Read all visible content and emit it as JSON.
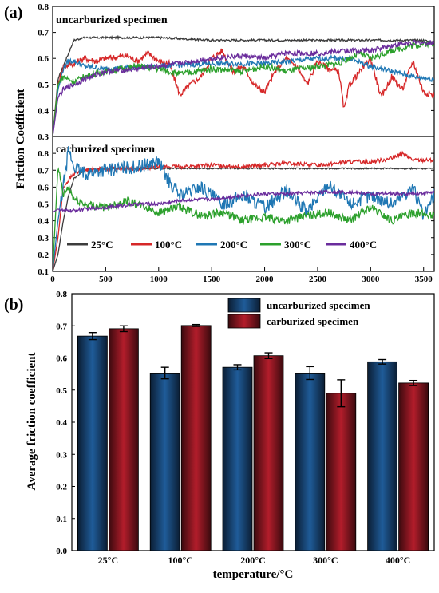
{
  "panel_labels": [
    "(a)",
    "(b)"
  ],
  "chart_data": [
    {
      "type": "line",
      "ylabel": "Friction Coefficient",
      "xlim": [
        0,
        3600
      ],
      "x_ticks": [
        "0",
        "500",
        "1000",
        "1500",
        "2000",
        "2500",
        "3000",
        "3500"
      ],
      "legend_placement": "bottom",
      "legend": [
        {
          "name": "25°C",
          "color": "#3c3c3c"
        },
        {
          "name": "100°C",
          "color": "#d62728"
        },
        {
          "name": "200°C",
          "color": "#1f77b4"
        },
        {
          "name": "300°C",
          "color": "#2ca02c"
        },
        {
          "name": "400°C",
          "color": "#6a2c9c"
        }
      ],
      "panels": [
        {
          "title": "uncarburized specimen",
          "ylim": [
            0.3,
            0.8
          ],
          "y_ticks": [
            "0.3",
            "0.4",
            "0.5",
            "0.6",
            "0.7",
            "0.8"
          ],
          "series": [
            {
              "name": "25°C",
              "color": "#3c3c3c",
              "x": [
                0,
                50,
                100,
                150,
                200,
                300,
                500,
                1000,
                1500,
                2000,
                2500,
                3000,
                3500,
                3600
              ],
              "y": [
                0.3,
                0.52,
                0.57,
                0.62,
                0.67,
                0.68,
                0.68,
                0.68,
                0.67,
                0.67,
                0.67,
                0.67,
                0.67,
                0.66
              ]
            },
            {
              "name": "100°C",
              "color": "#d62728",
              "x": [
                0,
                50,
                100,
                200,
                300,
                400,
                500,
                700,
                800,
                900,
                1000,
                1100,
                1200,
                1300,
                1400,
                1500,
                1600,
                1700,
                1800,
                1900,
                2000,
                2100,
                2200,
                2300,
                2400,
                2500,
                2600,
                2700,
                2750,
                2800,
                2900,
                3000,
                3100,
                3200,
                3300,
                3400,
                3500,
                3600
              ],
              "y": [
                0.3,
                0.5,
                0.57,
                0.58,
                0.6,
                0.59,
                0.6,
                0.61,
                0.59,
                0.62,
                0.59,
                0.58,
                0.46,
                0.5,
                0.53,
                0.6,
                0.63,
                0.55,
                0.57,
                0.5,
                0.47,
                0.55,
                0.6,
                0.57,
                0.5,
                0.59,
                0.56,
                0.55,
                0.4,
                0.5,
                0.55,
                0.6,
                0.45,
                0.53,
                0.48,
                0.59,
                0.47,
                0.46
              ]
            },
            {
              "name": "200°C",
              "color": "#1f77b4",
              "x": [
                0,
                50,
                100,
                150,
                200,
                300,
                500,
                1000,
                1500,
                2000,
                2500,
                2800,
                3000,
                3200,
                3400,
                3600
              ],
              "y": [
                0.3,
                0.48,
                0.56,
                0.59,
                0.59,
                0.57,
                0.56,
                0.57,
                0.58,
                0.58,
                0.6,
                0.6,
                0.57,
                0.55,
                0.53,
                0.52
              ]
            },
            {
              "name": "300°C",
              "color": "#2ca02c",
              "x": [
                0,
                50,
                100,
                200,
                300,
                500,
                800,
                1000,
                1200,
                1500,
                1800,
                2000,
                2200,
                2500,
                2700,
                2900,
                3000,
                3200,
                3400,
                3600
              ],
              "y": [
                0.3,
                0.5,
                0.53,
                0.51,
                0.53,
                0.55,
                0.57,
                0.56,
                0.54,
                0.56,
                0.55,
                0.57,
                0.55,
                0.57,
                0.58,
                0.62,
                0.6,
                0.63,
                0.65,
                0.66
              ]
            },
            {
              "name": "400°C",
              "color": "#6a2c9c",
              "x": [
                0,
                50,
                100,
                200,
                300,
                500,
                800,
                1000,
                1200,
                1500,
                1800,
                2000,
                2200,
                2500,
                2800,
                3000,
                3200,
                3400,
                3600
              ],
              "y": [
                0.3,
                0.45,
                0.48,
                0.5,
                0.52,
                0.55,
                0.56,
                0.57,
                0.58,
                0.6,
                0.61,
                0.6,
                0.62,
                0.62,
                0.63,
                0.63,
                0.65,
                0.66,
                0.66
              ]
            }
          ]
        },
        {
          "title": "carburized specimen",
          "ylim": [
            0.1,
            0.9
          ],
          "y_ticks": [
            "0.1",
            "0.2",
            "0.3",
            "0.4",
            "0.5",
            "0.6",
            "0.7",
            "0.8",
            "0.9"
          ],
          "series": [
            {
              "name": "25°C",
              "color": "#3c3c3c",
              "x": [
                0,
                50,
                100,
                150,
                200,
                300,
                500,
                1000,
                1500,
                2000,
                2500,
                3000,
                3500,
                3600
              ],
              "y": [
                0.1,
                0.2,
                0.4,
                0.55,
                0.65,
                0.7,
                0.71,
                0.71,
                0.71,
                0.71,
                0.71,
                0.71,
                0.71,
                0.71
              ]
            },
            {
              "name": "100°C",
              "color": "#d62728",
              "x": [
                0,
                50,
                100,
                200,
                300,
                500,
                800,
                1000,
                1200,
                1500,
                1800,
                2000,
                2200,
                2500,
                2800,
                3000,
                3200,
                3300,
                3400,
                3600
              ],
              "y": [
                0.1,
                0.3,
                0.6,
                0.68,
                0.7,
                0.71,
                0.71,
                0.72,
                0.72,
                0.73,
                0.72,
                0.73,
                0.74,
                0.73,
                0.75,
                0.75,
                0.77,
                0.8,
                0.76,
                0.76
              ]
            },
            {
              "name": "200°C",
              "color": "#1f77b4",
              "x": [
                0,
                50,
                100,
                150,
                200,
                300,
                500,
                800,
                1000,
                1100,
                1200,
                1400,
                1600,
                1800,
                2000,
                2200,
                2400,
                2600,
                2800,
                3000,
                3200,
                3400,
                3500,
                3600
              ],
              "y": [
                0.1,
                0.4,
                0.6,
                0.82,
                0.72,
                0.68,
                0.7,
                0.72,
                0.75,
                0.63,
                0.55,
                0.6,
                0.5,
                0.55,
                0.48,
                0.58,
                0.45,
                0.62,
                0.5,
                0.55,
                0.5,
                0.6,
                0.42,
                0.55
              ]
            },
            {
              "name": "300°C",
              "color": "#2ca02c",
              "x": [
                0,
                50,
                100,
                150,
                200,
                300,
                500,
                700,
                1000,
                1200,
                1400,
                1600,
                1800,
                2000,
                2200,
                2400,
                2600,
                2800,
                3000,
                3200,
                3400,
                3600
              ],
              "y": [
                0.1,
                0.72,
                0.55,
                0.6,
                0.53,
                0.5,
                0.48,
                0.52,
                0.45,
                0.48,
                0.43,
                0.45,
                0.4,
                0.42,
                0.4,
                0.43,
                0.45,
                0.4,
                0.48,
                0.4,
                0.45,
                0.43
              ]
            },
            {
              "name": "400°C",
              "color": "#6a2c9c",
              "x": [
                0,
                50,
                100,
                200,
                300,
                500,
                800,
                1000,
                1200,
                1500,
                1800,
                2000,
                2200,
                2500,
                2800,
                3000,
                3200,
                3400,
                3600
              ],
              "y": [
                0.45,
                0.47,
                0.46,
                0.46,
                0.47,
                0.48,
                0.5,
                0.5,
                0.52,
                0.53,
                0.55,
                0.56,
                0.56,
                0.57,
                0.57,
                0.56,
                0.56,
                0.56,
                0.57
              ]
            }
          ]
        }
      ]
    },
    {
      "type": "bar",
      "xlabel": "temperature/°C",
      "ylabel": "Average  friction coefficient",
      "ylim": [
        0.0,
        0.8
      ],
      "y_ticks": [
        "0.0",
        "0.1",
        "0.2",
        "0.3",
        "0.4",
        "0.5",
        "0.6",
        "0.7",
        "0.8"
      ],
      "legend_placement": "top-right",
      "categories": [
        "25°C",
        "100°C",
        "200°C",
        "300°C",
        "400°C"
      ],
      "series": [
        {
          "name": "uncarburized specimen",
          "color": "#1f5c99",
          "values": [
            0.668,
            0.553,
            0.571,
            0.553,
            0.588
          ],
          "errors": [
            0.011,
            0.018,
            0.008,
            0.02,
            0.007
          ]
        },
        {
          "name": "carburized specimen",
          "color": "#b31d2b",
          "values": [
            0.691,
            0.701,
            0.607,
            0.49,
            0.522
          ],
          "errors": [
            0.009,
            0.003,
            0.009,
            0.042,
            0.008
          ]
        }
      ]
    }
  ]
}
